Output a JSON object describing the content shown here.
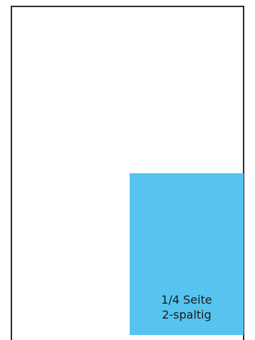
{
  "ad_format": {
    "label_line1": "1/4 Seite",
    "label_line2": "2-spaltig",
    "fill_color": "#56c4ef",
    "outline_color": "#2b2b2b"
  }
}
